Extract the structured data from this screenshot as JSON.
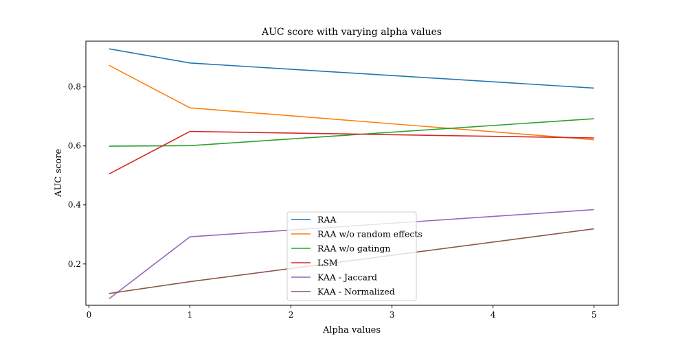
{
  "chart_data": {
    "type": "line",
    "title": "AUC score with varying alpha values",
    "xlabel": "Alpha values",
    "ylabel": "AUC score",
    "x": [
      0.2,
      1,
      5
    ],
    "xlim": [
      -0.03,
      5.24
    ],
    "ylim": [
      0.06,
      0.955
    ],
    "xticks": [
      0,
      1,
      2,
      3,
      4,
      5
    ],
    "xtick_labels": [
      "0",
      "1",
      "2",
      "3",
      "4",
      "5"
    ],
    "yticks": [
      0.2,
      0.4,
      0.6,
      0.8
    ],
    "ytick_labels": [
      "0.2",
      "0.4",
      "0.6",
      "0.8"
    ],
    "grid": false,
    "legend_position": "lower-center",
    "series": [
      {
        "name": "RAA",
        "color": "#1f77b4",
        "values": [
          0.929,
          0.881,
          0.796
        ]
      },
      {
        "name": "RAA w/o random effects",
        "color": "#ff7f0e",
        "values": [
          0.873,
          0.729,
          0.621
        ]
      },
      {
        "name": "RAA w/o gatingn",
        "color": "#2ca02c",
        "values": [
          0.599,
          0.601,
          0.692
        ]
      },
      {
        "name": "LSM",
        "color": "#d62728",
        "values": [
          0.505,
          0.649,
          0.627
        ]
      },
      {
        "name": "KAA - Jaccard",
        "color": "#9467bd",
        "values": [
          0.082,
          0.292,
          0.384
        ]
      },
      {
        "name": "KAA - Normalized",
        "color": "#8c564b",
        "values": [
          0.1,
          0.14,
          0.319
        ]
      }
    ]
  }
}
